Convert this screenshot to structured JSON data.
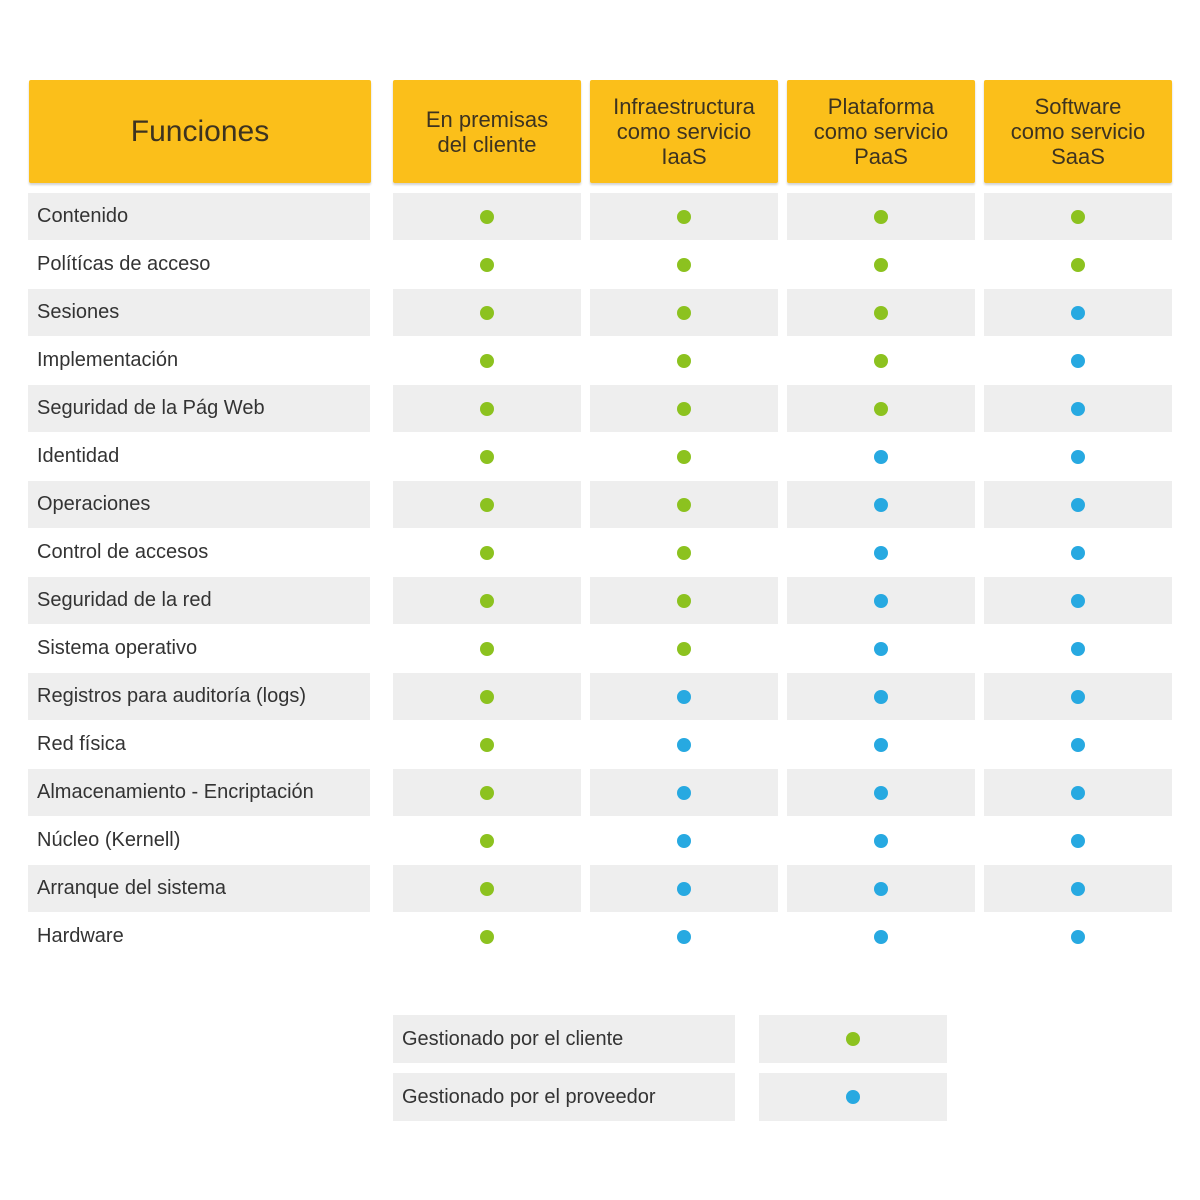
{
  "header": {
    "functions": "Funciones",
    "columns": [
      "En premisas\ndel cliente",
      "Infraestructura\ncomo servicio\nIaaS",
      "Plataforma\ncomo servicio\nPaaS",
      "Software\ncomo servicio\nSaaS"
    ]
  },
  "rows": [
    {
      "label": "Contenido",
      "managed_by": [
        "client",
        "client",
        "client",
        "client"
      ]
    },
    {
      "label": "Polítícas de acceso",
      "managed_by": [
        "client",
        "client",
        "client",
        "client"
      ]
    },
    {
      "label": "Sesiones",
      "managed_by": [
        "client",
        "client",
        "client",
        "provider"
      ]
    },
    {
      "label": "Implementación",
      "managed_by": [
        "client",
        "client",
        "client",
        "provider"
      ]
    },
    {
      "label": "Seguridad de la Pág Web",
      "managed_by": [
        "client",
        "client",
        "client",
        "provider"
      ]
    },
    {
      "label": "Identidad",
      "managed_by": [
        "client",
        "client",
        "provider",
        "provider"
      ]
    },
    {
      "label": "Operaciones",
      "managed_by": [
        "client",
        "client",
        "provider",
        "provider"
      ]
    },
    {
      "label": "Control de accesos",
      "managed_by": [
        "client",
        "client",
        "provider",
        "provider"
      ]
    },
    {
      "label": "Seguridad de la red",
      "managed_by": [
        "client",
        "client",
        "provider",
        "provider"
      ]
    },
    {
      "label": "Sistema operativo",
      "managed_by": [
        "client",
        "client",
        "provider",
        "provider"
      ]
    },
    {
      "label": "Registros para auditoría (logs)",
      "managed_by": [
        "client",
        "provider",
        "provider",
        "provider"
      ]
    },
    {
      "label": "Red física",
      "managed_by": [
        "client",
        "provider",
        "provider",
        "provider"
      ]
    },
    {
      "label": "Almacenamiento - Encriptación",
      "managed_by": [
        "client",
        "provider",
        "provider",
        "provider"
      ]
    },
    {
      "label": "Núcleo (Kernell)",
      "managed_by": [
        "client",
        "provider",
        "provider",
        "provider"
      ]
    },
    {
      "label": "Arranque del sistema",
      "managed_by": [
        "client",
        "provider",
        "provider",
        "provider"
      ]
    },
    {
      "label": "Hardware",
      "managed_by": [
        "client",
        "provider",
        "provider",
        "provider"
      ]
    }
  ],
  "legend": {
    "client": "Gestionado por el cliente",
    "provider": "Gestionado por el proveedor"
  },
  "colors": {
    "header": "#fbbf1a",
    "client": "#8cc21f",
    "provider": "#27a9e1",
    "shade": "#eeeeee"
  }
}
